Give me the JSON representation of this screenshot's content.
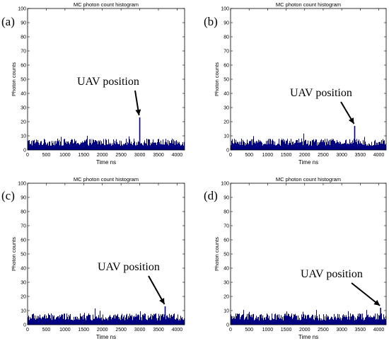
{
  "chart_data": [
    {
      "type": "bar",
      "panel_label": "(a)",
      "title": "MC photon count histogram",
      "xlabel": "Time ns",
      "ylabel": "Photon counts",
      "xlim": [
        0,
        4200
      ],
      "ylim": [
        0,
        100
      ],
      "xticks": [
        0,
        500,
        1000,
        1500,
        2000,
        2500,
        3000,
        3500,
        4000
      ],
      "yticks": [
        0,
        10,
        20,
        30,
        40,
        50,
        60,
        70,
        80,
        90,
        100
      ],
      "grid": false,
      "series": [
        {
          "color": "#000080",
          "noise_level": [
            3,
            8
          ],
          "peak": {
            "x": 3000,
            "y": 23
          }
        }
      ],
      "annotation": {
        "text": "UAV position",
        "x": 3000,
        "y": 23
      }
    },
    {
      "type": "bar",
      "panel_label": "(b)",
      "title": "MC photon count histogram",
      "xlabel": "Time ns",
      "ylabel": "Photon counts",
      "xlim": [
        0,
        4200
      ],
      "ylim": [
        0,
        100
      ],
      "xticks": [
        0,
        500,
        1000,
        1500,
        2000,
        2500,
        3000,
        3500,
        4000
      ],
      "yticks": [
        0,
        10,
        20,
        30,
        40,
        50,
        60,
        70,
        80,
        90,
        100
      ],
      "grid": false,
      "series": [
        {
          "color": "#000080",
          "noise_level": [
            3,
            8
          ],
          "peak": {
            "x": 3350,
            "y": 17
          }
        }
      ],
      "annotation": {
        "text": "UAV position",
        "x": 3350,
        "y": 17
      }
    },
    {
      "type": "bar",
      "panel_label": "(c)",
      "title": "MC photon count histogram",
      "xlabel": "Time ns",
      "ylabel": "Photon counts",
      "xlim": [
        0,
        4200
      ],
      "ylim": [
        0,
        100
      ],
      "xticks": [
        0,
        500,
        1000,
        1500,
        2000,
        2500,
        3000,
        3500,
        4000
      ],
      "yticks": [
        0,
        10,
        20,
        30,
        40,
        50,
        60,
        70,
        80,
        90,
        100
      ],
      "grid": false,
      "series": [
        {
          "color": "#000080",
          "noise_level": [
            3,
            8
          ],
          "peak": {
            "x": 3680,
            "y": 13
          }
        }
      ],
      "annotation": {
        "text": "UAV position",
        "x": 3680,
        "y": 13
      }
    },
    {
      "type": "bar",
      "panel_label": "(d)",
      "title": "MC photon count histogram",
      "xlabel": "Time ns",
      "ylabel": "Photon counts",
      "xlim": [
        0,
        4200
      ],
      "ylim": [
        0,
        100
      ],
      "xticks": [
        0,
        500,
        1000,
        1500,
        2000,
        2500,
        3000,
        3500,
        4000
      ],
      "yticks": [
        0,
        10,
        20,
        30,
        40,
        50,
        60,
        70,
        80,
        90,
        100
      ],
      "grid": false,
      "series": [
        {
          "color": "#000080",
          "noise_level": [
            3,
            8
          ],
          "peak": {
            "x": 4050,
            "y": 12
          }
        }
      ],
      "annotation": {
        "text": "UAV position",
        "x": 4050,
        "y": 12
      }
    }
  ]
}
